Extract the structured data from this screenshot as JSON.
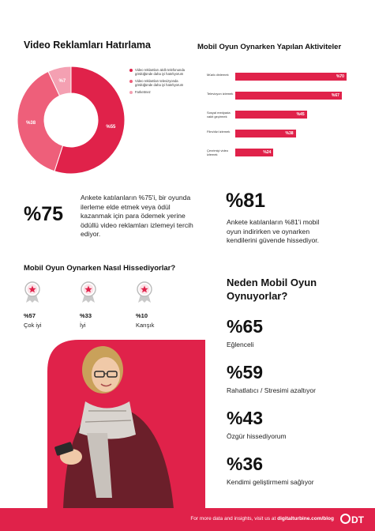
{
  "left_chart": {
    "title": "Video Reklamları Hatırlama",
    "legend": [
      {
        "label": "Video reklamları akıllı telefonunda gördüğünde daha iyi hatırlıyorum",
        "color": "#e0224a"
      },
      {
        "label": "Video reklamları televizyonda gördüğünde daha iyi hatırlıyorum",
        "color": "#ee5f7a"
      },
      {
        "label": "Farketmez",
        "color": "#f4a0b2"
      }
    ]
  },
  "right_chart": {
    "title": "Mobil Oyun Oynarken Yapılan Aktiviteler"
  },
  "chart_data": [
    {
      "type": "pie",
      "title": "Video Reklamları Hatırlama",
      "categories": [
        "Video reklamları akıllı telefonunda gördüğünde daha iyi hatırlıyorum",
        "Video reklamları televizyonda gördüğünde daha iyi hatırlıyorum",
        "Farketmez"
      ],
      "values": [
        55,
        38,
        7
      ],
      "value_labels": [
        "%55",
        "%38",
        "%7"
      ]
    },
    {
      "type": "bar",
      "orientation": "horizontal",
      "title": "Mobil Oyun Oynarken Yapılan Aktiviteler",
      "categories": [
        "Müzik dinlemek",
        "Televizyon izlemek",
        "Sosyal medyada vakit geçirmek",
        "Film/dizi izlemek",
        "Çevrimiçi video izlemek"
      ],
      "values": [
        70,
        67,
        45,
        38,
        24
      ],
      "value_labels": [
        "%70",
        "%67",
        "%45",
        "%38",
        "%24"
      ],
      "xlim": [
        0,
        72
      ]
    }
  ],
  "stat_75": {
    "value": "%75",
    "text": "Ankete katılanların %75'i, bir oyunda ilerleme elde etmek veya ödül kazanmak için para ödemek yerine ödüllü video reklamları izlemeyi tercih ediyor."
  },
  "stat_81": {
    "value": "%81",
    "text": "Ankete katılanların %81'i mobil oyun indirirken ve oynarken kendilerini güvende hissediyor."
  },
  "feelings": {
    "title": "Mobil Oyun Oynarken Nasıl Hissediyorlar?",
    "items": [
      {
        "value": "%57",
        "label": "Çok iyi"
      },
      {
        "value": "%33",
        "label": "İyi"
      },
      {
        "value": "%10",
        "label": "Karışık"
      }
    ]
  },
  "reasons": {
    "title": "Neden Mobil Oyun Oynuyorlar?",
    "items": [
      {
        "value": "%65",
        "label": "Eğlenceli"
      },
      {
        "value": "%59",
        "label": "Rahatlatıcı / Stresimi azaltıyor"
      },
      {
        "value": "%43",
        "label": "Özgür hissediyorum"
      },
      {
        "value": "%36",
        "label": "Kendimi geliştirmemi sağlıyor"
      }
    ]
  },
  "footer": {
    "text": "For more data and insights, visit us at ",
    "link": "digitalturbine.com/blog",
    "logo": "DT"
  }
}
